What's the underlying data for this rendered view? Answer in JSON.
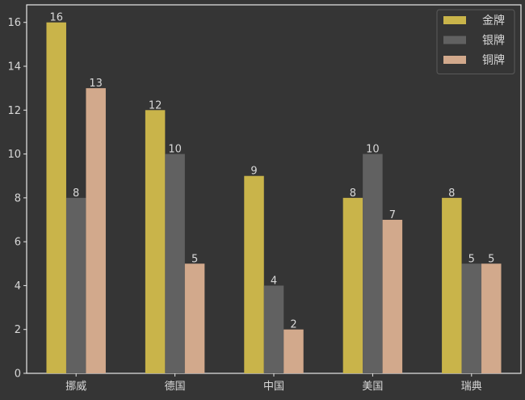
{
  "chart_data": {
    "type": "bar",
    "title": "",
    "xlabel": "",
    "ylabel": "",
    "categories": [
      "挪威",
      "德国",
      "中国",
      "美国",
      "瑞典"
    ],
    "series": [
      {
        "name": "金牌",
        "values": [
          16,
          12,
          9,
          8,
          8
        ],
        "color": "#c9b44a"
      },
      {
        "name": "银牌",
        "values": [
          8,
          10,
          4,
          10,
          5
        ],
        "color": "#616161"
      },
      {
        "name": "铜牌",
        "values": [
          13,
          5,
          2,
          7,
          5
        ],
        "color": "#d2a98c"
      }
    ],
    "yticks": [
      0,
      2,
      4,
      6,
      8,
      10,
      12,
      14,
      16
    ],
    "ylim": [
      0,
      16.8
    ],
    "grid": false,
    "legend_position": "top-right",
    "colors": {
      "background": "#353535",
      "axes": "#e8e8e8",
      "text": "#d8d8d8"
    }
  }
}
